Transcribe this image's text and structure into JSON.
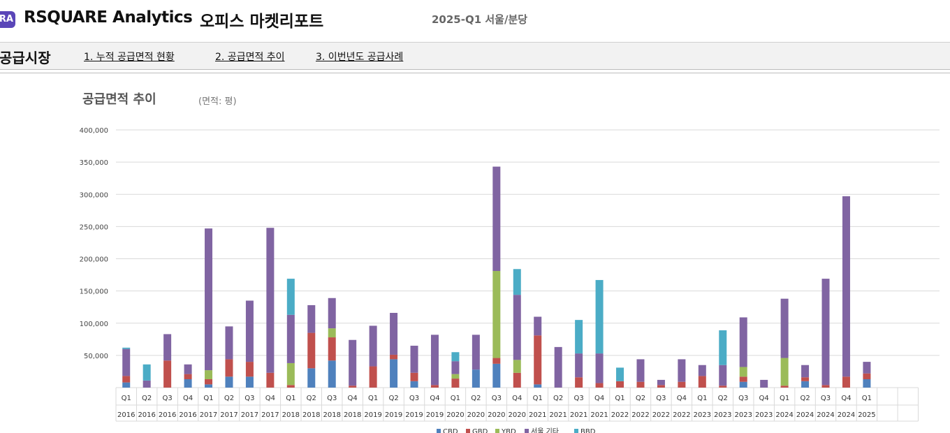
{
  "header": {
    "logo_badge": "RA",
    "brand": "RSQUARE Analytics",
    "report_title": "오피스 마켓리포트",
    "period": "2025-Q1 서울/분당"
  },
  "nav": {
    "section_title": "공급시장",
    "links": [
      "1. 누적 공급면적 현황",
      "2. 공급면적 추이",
      "3. 이번년도 공급사례"
    ]
  },
  "chart_data": {
    "type": "bar",
    "stacked": true,
    "title": "공급면적 추이",
    "unit_label": "(면적: 평)",
    "ylim": [
      0,
      400000
    ],
    "yticks": [
      50000,
      100000,
      150000,
      200000,
      250000,
      300000,
      350000,
      400000
    ],
    "ytick_labels": [
      "50,000",
      "100,000",
      "150,000",
      "200,000",
      "250,000",
      "300,000",
      "350,000",
      "400,000"
    ],
    "grid": true,
    "legend_position": "bottom",
    "categories": [
      [
        "Q1",
        "2016"
      ],
      [
        "Q2",
        "2016"
      ],
      [
        "Q3",
        "2016"
      ],
      [
        "Q4",
        "2016"
      ],
      [
        "Q1",
        "2017"
      ],
      [
        "Q2",
        "2017"
      ],
      [
        "Q3",
        "2017"
      ],
      [
        "Q4",
        "2017"
      ],
      [
        "Q1",
        "2018"
      ],
      [
        "Q2",
        "2018"
      ],
      [
        "Q3",
        "2018"
      ],
      [
        "Q4",
        "2018"
      ],
      [
        "Q1",
        "2019"
      ],
      [
        "Q2",
        "2019"
      ],
      [
        "Q3",
        "2019"
      ],
      [
        "Q4",
        "2019"
      ],
      [
        "Q1",
        "2020"
      ],
      [
        "Q2",
        "2020"
      ],
      [
        "Q3",
        "2020"
      ],
      [
        "Q4",
        "2020"
      ],
      [
        "Q1",
        "2021"
      ],
      [
        "Q2",
        "2021"
      ],
      [
        "Q3",
        "2021"
      ],
      [
        "Q4",
        "2021"
      ],
      [
        "Q1",
        "2022"
      ],
      [
        "Q2",
        "2022"
      ],
      [
        "Q3",
        "2022"
      ],
      [
        "Q4",
        "2022"
      ],
      [
        "Q1",
        "2023"
      ],
      [
        "Q2",
        "2023"
      ],
      [
        "Q3",
        "2023"
      ],
      [
        "Q4",
        "2023"
      ],
      [
        "Q1",
        "2024"
      ],
      [
        "Q2",
        "2024"
      ],
      [
        "Q3",
        "2024"
      ],
      [
        "Q4",
        "2024"
      ],
      [
        "Q1",
        "2025"
      ]
    ],
    "empty_slots_after": 2,
    "series": [
      {
        "name": "CBD",
        "color": "#4f81bd",
        "values": [
          8000,
          0,
          0,
          13000,
          5000,
          17000,
          17000,
          0,
          0,
          30000,
          42000,
          0,
          0,
          44000,
          10000,
          0,
          0,
          28000,
          37000,
          0,
          5000,
          0,
          0,
          0,
          0,
          0,
          0,
          0,
          0,
          0,
          9000,
          0,
          0,
          10000,
          0,
          0,
          13000
        ]
      },
      {
        "name": "GBD",
        "color": "#c0504d",
        "values": [
          10000,
          0,
          42000,
          8000,
          8000,
          27000,
          23000,
          23000,
          4000,
          55000,
          36000,
          3000,
          33000,
          7000,
          13000,
          4000,
          14000,
          0,
          9000,
          23000,
          76000,
          0,
          16000,
          7000,
          10000,
          9000,
          4000,
          9000,
          18000,
          3000,
          8000,
          0,
          3000,
          6000,
          4000,
          17000,
          9000
        ]
      },
      {
        "name": "YBD",
        "color": "#9bbb59",
        "values": [
          0,
          0,
          0,
          0,
          14000,
          0,
          0,
          0,
          34000,
          0,
          14000,
          0,
          0,
          0,
          0,
          0,
          7000,
          0,
          135000,
          20000,
          0,
          0,
          0,
          0,
          0,
          0,
          0,
          0,
          0,
          0,
          15000,
          0,
          43000,
          0,
          0,
          0,
          0
        ]
      },
      {
        "name": "서울 기타",
        "color": "#8064a2",
        "values": [
          42000,
          11000,
          41000,
          15000,
          220000,
          51000,
          95000,
          225000,
          75000,
          43000,
          47000,
          71000,
          63000,
          65000,
          42000,
          78000,
          20000,
          54000,
          162000,
          101000,
          29000,
          63000,
          37000,
          46000,
          0,
          35000,
          8000,
          35000,
          17000,
          32000,
          77000,
          12000,
          92000,
          19000,
          165000,
          280000,
          18000
        ]
      },
      {
        "name": "BBD",
        "color": "#4bacc6",
        "values": [
          2000,
          25000,
          0,
          0,
          0,
          0,
          0,
          0,
          56000,
          0,
          0,
          0,
          0,
          0,
          0,
          0,
          14000,
          0,
          0,
          40000,
          0,
          0,
          52000,
          114000,
          21000,
          0,
          0,
          0,
          0,
          54000,
          0,
          0,
          0,
          0,
          0,
          0,
          0
        ]
      }
    ]
  }
}
